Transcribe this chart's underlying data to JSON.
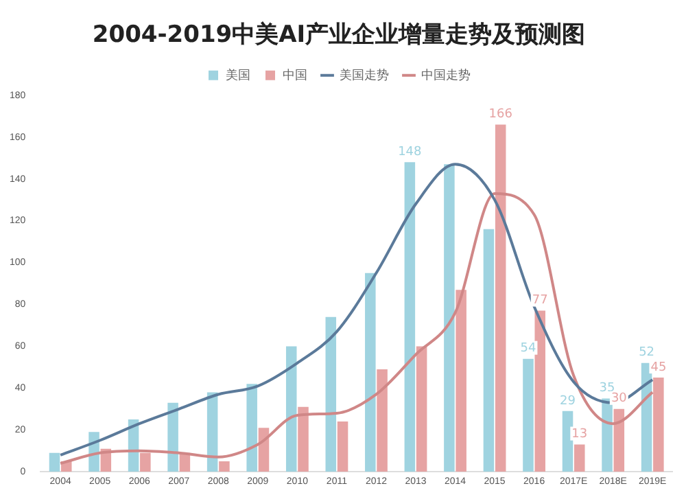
{
  "chart_data": {
    "type": "bar",
    "title": "2004-2019中美AI产业企业增量走势及预测图",
    "categories": [
      "2004",
      "2005",
      "2006",
      "2007",
      "2008",
      "2009",
      "2010",
      "2011",
      "2012",
      "2013",
      "2014",
      "2015",
      "2016",
      "2017E",
      "2018E",
      "2019E"
    ],
    "series": [
      {
        "name": "美国",
        "color": "#9fd3e0",
        "values": [
          9,
          19,
          25,
          33,
          38,
          42,
          60,
          74,
          95,
          148,
          147,
          116,
          54,
          29,
          35,
          52
        ],
        "value_labels": [
          null,
          null,
          null,
          null,
          null,
          null,
          null,
          null,
          null,
          "148",
          null,
          null,
          "54",
          "29",
          "35",
          "52"
        ]
      },
      {
        "name": "中国",
        "color": "#e6a3a3",
        "values": [
          5,
          11,
          9,
          9,
          5,
          21,
          31,
          24,
          49,
          60,
          87,
          166,
          77,
          13,
          30,
          45
        ],
        "value_labels": [
          null,
          null,
          null,
          null,
          null,
          null,
          null,
          null,
          null,
          null,
          null,
          "166",
          "77",
          "13",
          "30",
          "45"
        ]
      },
      {
        "name": "美国走势",
        "type": "line",
        "color": "#5b7a9a",
        "values": [
          8,
          15,
          23,
          30,
          37,
          41,
          52,
          67,
          95,
          128,
          147,
          130,
          79,
          43,
          33,
          44
        ]
      },
      {
        "name": "中国走势",
        "type": "line",
        "color": "#d08787",
        "values": [
          4,
          9,
          10,
          9,
          7,
          13,
          27,
          28,
          37,
          56,
          76,
          133,
          123,
          46,
          23,
          38
        ]
      }
    ],
    "ylim": [
      0,
      180
    ],
    "yticks": [
      0,
      20,
      40,
      60,
      80,
      100,
      120,
      140,
      160,
      180
    ],
    "grid": false,
    "legend": "top",
    "marker": "none",
    "line_style": "solid"
  }
}
